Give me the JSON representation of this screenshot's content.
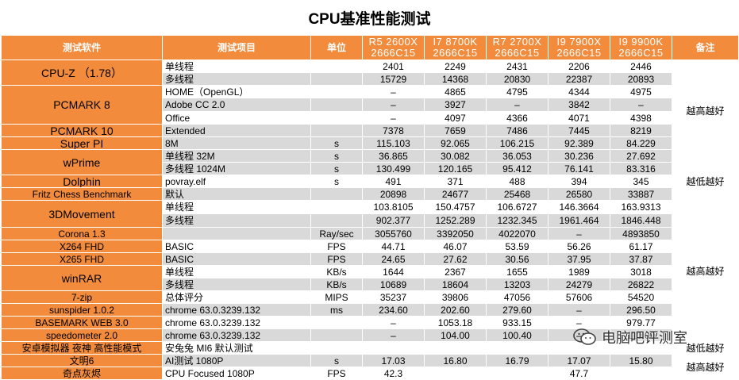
{
  "title": "CPU基准性能测试",
  "headers": {
    "software": "测试软件",
    "item": "测试项目",
    "unit": "单位",
    "cpus": [
      {
        "name": "R5 2600X",
        "spec": "2666C15"
      },
      {
        "name": "I7 8700K",
        "spec": "2666C15"
      },
      {
        "name": "R7 2700X",
        "spec": "2666C15"
      },
      {
        "name": "I9 7900X",
        "spec": "2666C15"
      },
      {
        "name": "I9 9900K",
        "spec": "2666C15"
      }
    ],
    "note": "备注"
  },
  "groups": [
    {
      "software": "CPU-Z （1.78）",
      "rows": [
        {
          "item": "单线程",
          "unit": "",
          "values": [
            "2401",
            "2249",
            "2431",
            "2206",
            "2446"
          ]
        },
        {
          "item": "多线程",
          "unit": "",
          "values": [
            "15729",
            "14368",
            "20830",
            "22387",
            "20893"
          ]
        }
      ]
    },
    {
      "software": "PCMARK 8",
      "rows": [
        {
          "item": "HOME（OpenGL）",
          "unit": "",
          "values": [
            "–",
            "4865",
            "4795",
            "4344",
            "4975"
          ]
        },
        {
          "item": "Adobe CC 2.0",
          "unit": "",
          "values": [
            "–",
            "3927",
            "–",
            "3842",
            "–"
          ]
        },
        {
          "item": "Office",
          "unit": "",
          "values": [
            "–",
            "4097",
            "4366",
            "4071",
            "4398"
          ]
        }
      ]
    },
    {
      "software": "PCMARK 10",
      "rows": [
        {
          "item": "Extended",
          "unit": "",
          "values": [
            "7378",
            "7659",
            "7486",
            "7445",
            "8219"
          ]
        }
      ]
    },
    {
      "software": "Super PI",
      "rows": [
        {
          "item": "8M",
          "unit": "s",
          "values": [
            "115.103",
            "92.065",
            "106.215",
            "92.389",
            "84.229"
          ]
        }
      ]
    },
    {
      "software": "wPrime",
      "rows": [
        {
          "item": "单线程 32M",
          "unit": "s",
          "values": [
            "36.865",
            "30.082",
            "36.053",
            "30.236",
            "27.692"
          ]
        },
        {
          "item": "多线程 1024M",
          "unit": "s",
          "values": [
            "130.499",
            "120.165",
            "95.412",
            "76.141",
            "83.316"
          ]
        }
      ]
    },
    {
      "software": "Dolphin",
      "rows": [
        {
          "item": "povray.elf",
          "unit": "s",
          "values": [
            "491",
            "371",
            "488",
            "394",
            "345"
          ]
        }
      ]
    },
    {
      "software": "Fritz Chess Benchmark",
      "rows": [
        {
          "item": "默认",
          "unit": "",
          "values": [
            "20898",
            "24677",
            "25468",
            "26580",
            "33887"
          ]
        }
      ]
    },
    {
      "software": "3DMovement",
      "rows": [
        {
          "item": "单线程",
          "unit": "",
          "values": [
            "103.8105",
            "150.4757",
            "106.6727",
            "146.3664",
            "163.9313"
          ]
        },
        {
          "item": "多线程",
          "unit": "",
          "values": [
            "902.377",
            "1252.289",
            "1232.345",
            "1961.464",
            "1846.448"
          ]
        }
      ]
    },
    {
      "software": "Corona 1.3",
      "rows": [
        {
          "item": "",
          "unit": "Ray/sec",
          "values": [
            "3055760",
            "3392050",
            "4022070",
            "–",
            "4893850"
          ]
        }
      ]
    },
    {
      "software": "X264 FHD",
      "rows": [
        {
          "item": "BASIC",
          "unit": "FPS",
          "values": [
            "44.71",
            "46.07",
            "53.59",
            "56.26",
            "61.17"
          ]
        }
      ]
    },
    {
      "software": "X265 FHD",
      "rows": [
        {
          "item": "BASIC",
          "unit": "FPS",
          "values": [
            "24.65",
            "27.62",
            "30.56",
            "37.95",
            "37.87"
          ]
        }
      ]
    },
    {
      "software": "winRAR",
      "rows": [
        {
          "item": "单线程",
          "unit": "KB/s",
          "values": [
            "1644",
            "2367",
            "1655",
            "1989",
            "3018"
          ]
        },
        {
          "item": "多线程",
          "unit": "KB/s",
          "values": [
            "10689",
            "18604",
            "13203",
            "24279",
            "26822"
          ]
        }
      ]
    },
    {
      "software": "7-zip",
      "rows": [
        {
          "item": "总体评分",
          "unit": "MIPS",
          "values": [
            "35237",
            "39806",
            "47056",
            "57606",
            "54520"
          ]
        }
      ]
    },
    {
      "software": "sunspider 1.0.2",
      "rows": [
        {
          "item": "chrome 63.0.3239.132",
          "unit": "ms",
          "values": [
            "234.60",
            "202.60",
            "279.60",
            "–",
            "296.50"
          ]
        }
      ]
    },
    {
      "software": "BASEMARK WEB 3.0",
      "rows": [
        {
          "item": "chrome 63.0.3239.132",
          "unit": "",
          "values": [
            "–",
            "1053.18",
            "933.15",
            "–",
            "979.77"
          ]
        }
      ]
    },
    {
      "software": "speedometer 2.0",
      "rows": [
        {
          "item": "chrome 63.0.3239.132",
          "unit": "",
          "values": [
            "–",
            "104.00",
            "100.40",
            "–",
            "110.00"
          ]
        }
      ]
    },
    {
      "software": "安卓模拟器 夜神 高性能模式",
      "rows": [
        {
          "item": "安兔兔 MI6 默认测试",
          "unit": "",
          "values": [
            "",
            "",
            "",
            "",
            ""
          ]
        }
      ]
    },
    {
      "software": "文明6",
      "rows": [
        {
          "item": "AI测试 1080P",
          "unit": "s",
          "values": [
            "17.03",
            "16.80",
            "16.79",
            "17.07",
            "15.80"
          ]
        }
      ]
    },
    {
      "software": "奇点灰烬",
      "rows": [
        {
          "item": "CPU Focused 1080P",
          "unit": "FPS",
          "values": [
            "42.3",
            "",
            "",
            "47.7",
            ""
          ]
        }
      ]
    }
  ],
  "notes": [
    "越高越好",
    "越低越好",
    "越高越好",
    "越低越好",
    "越高越好"
  ],
  "watermark": "电脑吧评测室"
}
